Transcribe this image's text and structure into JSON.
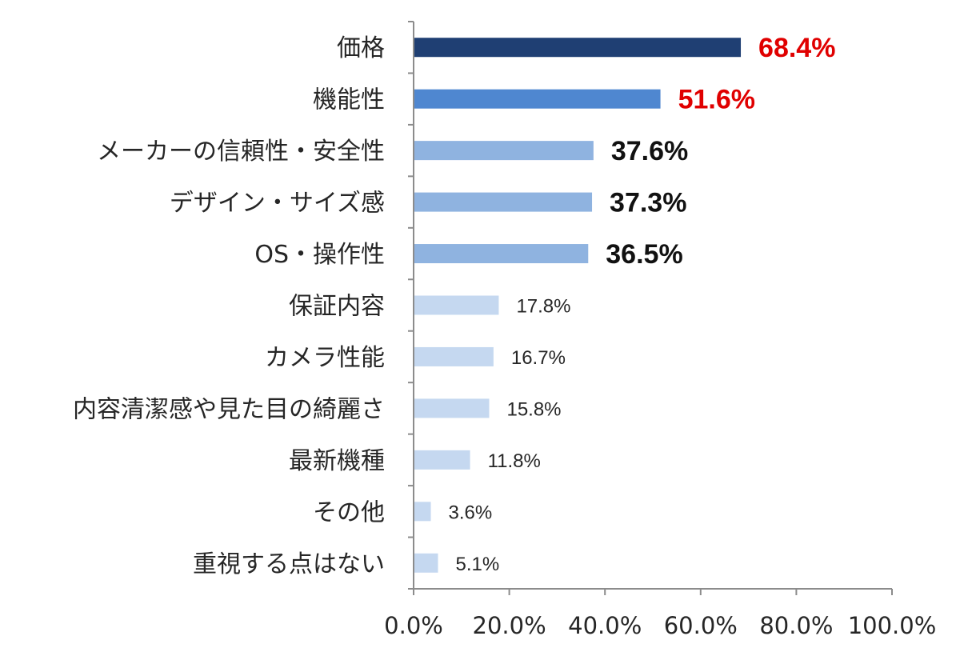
{
  "chart_data": {
    "type": "bar",
    "orientation": "horizontal",
    "categories": [
      "価格",
      "機能性",
      "メーカーの信頼性・安全性",
      "デザイン・サイズ感",
      "OS・操作性",
      "保証内容",
      "カメラ性能",
      "内容清潔感や見た目の綺麗さ",
      "最新機種",
      "その他",
      "重視する点はない"
    ],
    "values": [
      68.4,
      51.6,
      37.6,
      37.3,
      36.5,
      17.8,
      16.7,
      15.8,
      11.8,
      3.6,
      5.1
    ],
    "value_labels": [
      "68.4%",
      "51.6%",
      "37.6%",
      "37.3%",
      "36.5%",
      "17.8%",
      "16.7%",
      "15.8%",
      "11.8%",
      "3.6%",
      "5.1%"
    ],
    "bar_colors": [
      "#1f3f73",
      "#4f87d0",
      "#8fb3e0",
      "#8fb3e0",
      "#8fb3e0",
      "#c5d8f0",
      "#c5d8f0",
      "#c5d8f0",
      "#c5d8f0",
      "#c5d8f0",
      "#c5d8f0"
    ],
    "label_colors": [
      "#e00000",
      "#e00000",
      "#111111",
      "#111111",
      "#111111",
      "#262626",
      "#262626",
      "#262626",
      "#262626",
      "#262626",
      "#262626"
    ],
    "label_emphasis": [
      "bold",
      "bold",
      "bold",
      "bold",
      "bold",
      "normal",
      "normal",
      "normal",
      "normal",
      "normal",
      "normal"
    ],
    "xlim": [
      0,
      100
    ],
    "x_ticks": [
      0,
      20,
      40,
      60,
      80,
      100
    ],
    "x_tick_labels": [
      "0.0%",
      "20.0%",
      "40.0%",
      "60.0%",
      "80.0%",
      "100.0%"
    ],
    "title": "",
    "xlabel": "",
    "ylabel": "",
    "grid": false,
    "legend": "none"
  }
}
